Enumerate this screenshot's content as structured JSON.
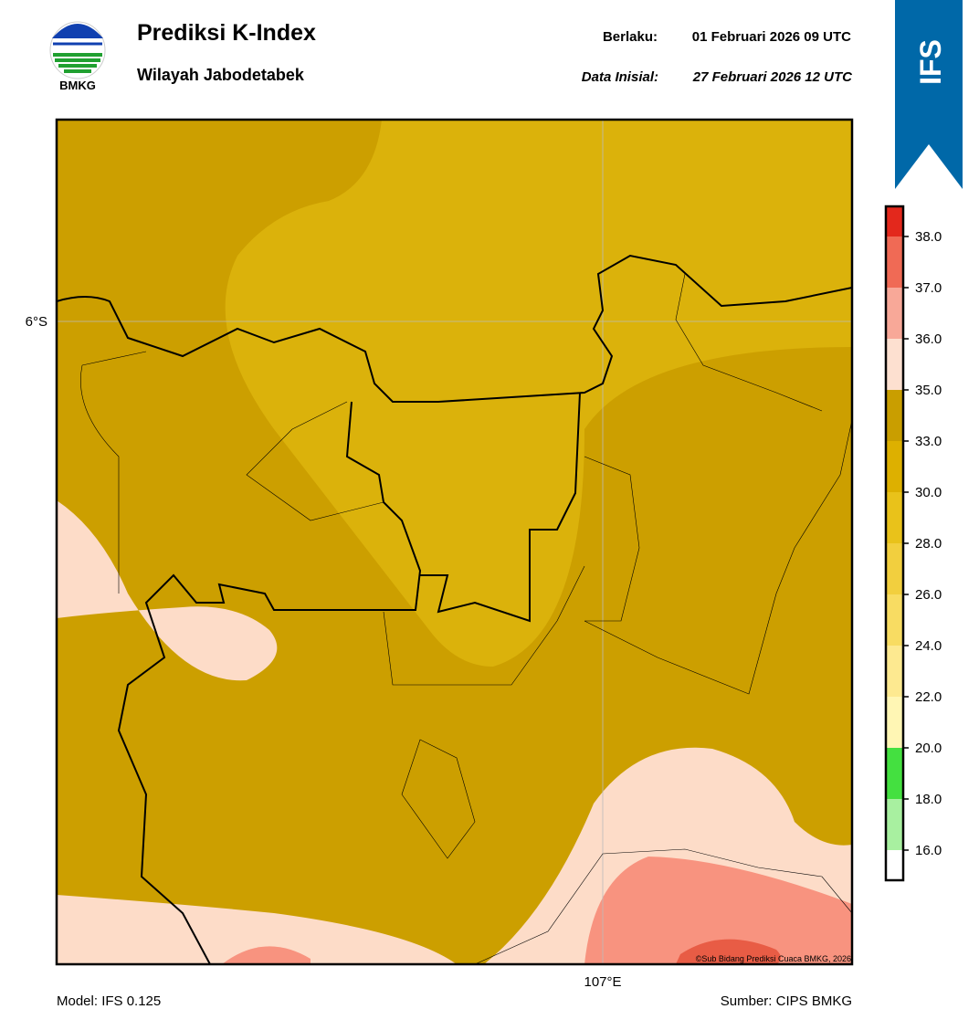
{
  "header": {
    "logo_text": "BMKG",
    "title": "Prediksi K-Index",
    "subtitle": "Wilayah Jabodetabek",
    "valid_label": "Berlaku:",
    "valid_time": "01 Februari 2026 09 UTC",
    "init_label": "Data Inisial:",
    "init_time": "27 Februari 2026 12 UTC",
    "badge": "IFS"
  },
  "map": {
    "lat_label": "6°S",
    "lon_label": "107°E",
    "copyright": "©Sub Bidang Prediksi Cuaca BMKG, 2026"
  },
  "colorbar": {
    "colors": [
      "#ffffff",
      "#a8f0a0",
      "#44e040",
      "#fff6b4",
      "#fde990",
      "#f8dc62",
      "#f2cf3e",
      "#e9c21a",
      "#ddb000",
      "#c99e00",
      "#fde0d0",
      "#f8a898",
      "#f06a55",
      "#e3281c"
    ],
    "ticks": [
      {
        "value": 16,
        "label": "16.0"
      },
      {
        "value": 18,
        "label": "18.0"
      },
      {
        "value": 20,
        "label": "20.0"
      },
      {
        "value": 22,
        "label": "22.0"
      },
      {
        "value": 24,
        "label": "24.0"
      },
      {
        "value": 26,
        "label": "26.0"
      },
      {
        "value": 28,
        "label": "28.0"
      },
      {
        "value": 30,
        "label": "30.0"
      },
      {
        "value": 33,
        "label": "33.0"
      },
      {
        "value": 35,
        "label": "35.0"
      },
      {
        "value": 36,
        "label": "36.0"
      },
      {
        "value": 37,
        "label": "37.0"
      },
      {
        "value": 38,
        "label": "38.0"
      }
    ]
  },
  "footer": {
    "model": "Model: IFS 0.125",
    "source": "Sumber: CIPS BMKG"
  }
}
